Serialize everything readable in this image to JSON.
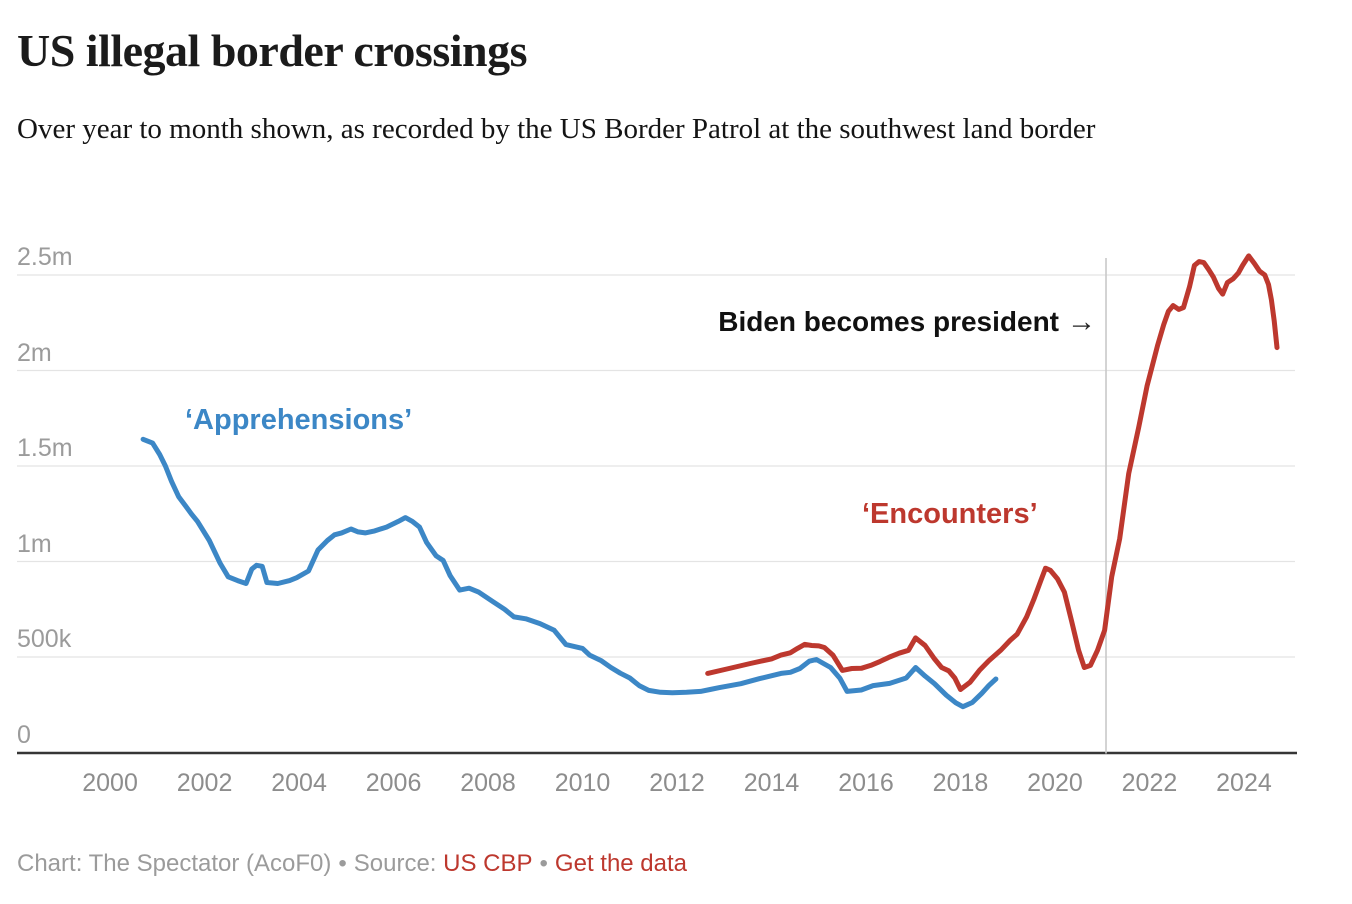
{
  "header": {
    "title": "US illegal border crossings",
    "subtitle": "Over year to month shown, as recorded by the US Border Patrol at the southwest land border"
  },
  "annotations": {
    "biden_label": "Biden becomes president",
    "biden_arrow": "→",
    "apprehensions_label": "‘Apprehensions’",
    "encounters_label": "‘Encounters’"
  },
  "footer": {
    "credit": "Chart: The Spectator (AcoF0)",
    "separator": "•",
    "source_prefix": "Source:",
    "source_link": "US CBP",
    "data_link": "Get the data"
  },
  "colors": {
    "apprehensions_blue": "#3c87c6",
    "encounters_red": "#bd382e",
    "grid": "#e4e4e4",
    "axis": "#363636",
    "vline": "#c9c9c9",
    "tick_text": "#9b9b9b",
    "link_red": "#bd382e"
  },
  "chart_data": {
    "type": "line",
    "title": "US illegal border crossings",
    "subtitle": "Over year to month shown, as recorded by the US Border Patrol at the southwest land border",
    "unit": "people per rolling 12-month period, millions",
    "xlabel": "",
    "ylabel": "",
    "grid": true,
    "legend_position": "inline-labels",
    "x_range": [
      1998.03,
      2025.08
    ],
    "ylim": [
      0,
      2.5
    ],
    "x_ticks": [
      2000,
      2002,
      2004,
      2006,
      2008,
      2010,
      2012,
      2014,
      2016,
      2018,
      2020,
      2022,
      2024
    ],
    "y_ticks": [
      {
        "value": 0.0,
        "label": "0"
      },
      {
        "value": 0.5,
        "label": "500k"
      },
      {
        "value": 1.0,
        "label": "1m"
      },
      {
        "value": 1.5,
        "label": "1.5m"
      },
      {
        "value": 2.0,
        "label": "2m"
      },
      {
        "value": 2.5,
        "label": "2.5m"
      }
    ],
    "vline": {
      "x": 2021.08,
      "label": "Biden becomes president"
    },
    "series": [
      {
        "name": "Apprehensions",
        "color": "#3c87c6",
        "points": [
          [
            2000.7,
            1.64
          ],
          [
            2000.9,
            1.62
          ],
          [
            2001.05,
            1.56
          ],
          [
            2001.17,
            1.5
          ],
          [
            2001.3,
            1.42
          ],
          [
            2001.45,
            1.34
          ],
          [
            2001.6,
            1.29
          ],
          [
            2001.72,
            1.25
          ],
          [
            2001.85,
            1.21
          ],
          [
            2002.1,
            1.11
          ],
          [
            2002.33,
            0.99
          ],
          [
            2002.5,
            0.92
          ],
          [
            2002.7,
            0.9
          ],
          [
            2002.88,
            0.885
          ],
          [
            2003.0,
            0.96
          ],
          [
            2003.1,
            0.98
          ],
          [
            2003.22,
            0.975
          ],
          [
            2003.32,
            0.89
          ],
          [
            2003.55,
            0.885
          ],
          [
            2003.8,
            0.9
          ],
          [
            2003.95,
            0.915
          ],
          [
            2004.2,
            0.95
          ],
          [
            2004.4,
            1.06
          ],
          [
            2004.6,
            1.11
          ],
          [
            2004.75,
            1.14
          ],
          [
            2004.9,
            1.15
          ],
          [
            2005.1,
            1.17
          ],
          [
            2005.25,
            1.155
          ],
          [
            2005.4,
            1.15
          ],
          [
            2005.6,
            1.16
          ],
          [
            2005.85,
            1.18
          ],
          [
            2006.1,
            1.21
          ],
          [
            2006.25,
            1.23
          ],
          [
            2006.4,
            1.21
          ],
          [
            2006.55,
            1.18
          ],
          [
            2006.7,
            1.1
          ],
          [
            2006.9,
            1.03
          ],
          [
            2007.05,
            1.005
          ],
          [
            2007.2,
            0.925
          ],
          [
            2007.4,
            0.85
          ],
          [
            2007.6,
            0.86
          ],
          [
            2007.8,
            0.84
          ],
          [
            2008.1,
            0.79
          ],
          [
            2008.35,
            0.75
          ],
          [
            2008.55,
            0.71
          ],
          [
            2008.8,
            0.7
          ],
          [
            2009.1,
            0.675
          ],
          [
            2009.4,
            0.64
          ],
          [
            2009.65,
            0.565
          ],
          [
            2010.0,
            0.545
          ],
          [
            2010.15,
            0.51
          ],
          [
            2010.4,
            0.48
          ],
          [
            2010.6,
            0.445
          ],
          [
            2010.8,
            0.415
          ],
          [
            2011.0,
            0.39
          ],
          [
            2011.2,
            0.35
          ],
          [
            2011.4,
            0.325
          ],
          [
            2011.65,
            0.315
          ],
          [
            2011.9,
            0.313
          ],
          [
            2012.2,
            0.315
          ],
          [
            2012.5,
            0.32
          ],
          [
            2012.7,
            0.33
          ],
          [
            2012.9,
            0.34
          ],
          [
            2013.35,
            0.36
          ],
          [
            2013.75,
            0.387
          ],
          [
            2014.2,
            0.414
          ],
          [
            2014.4,
            0.42
          ],
          [
            2014.6,
            0.44
          ],
          [
            2014.8,
            0.478
          ],
          [
            2014.95,
            0.487
          ],
          [
            2015.1,
            0.466
          ],
          [
            2015.25,
            0.445
          ],
          [
            2015.45,
            0.388
          ],
          [
            2015.6,
            0.32
          ],
          [
            2015.9,
            0.327
          ],
          [
            2016.15,
            0.35
          ],
          [
            2016.5,
            0.362
          ],
          [
            2016.85,
            0.39
          ],
          [
            2017.05,
            0.445
          ],
          [
            2017.25,
            0.4
          ],
          [
            2017.45,
            0.36
          ],
          [
            2017.7,
            0.3
          ],
          [
            2017.9,
            0.26
          ],
          [
            2018.05,
            0.24
          ],
          [
            2018.25,
            0.262
          ],
          [
            2018.45,
            0.31
          ],
          [
            2018.6,
            0.35
          ],
          [
            2018.75,
            0.385
          ]
        ]
      },
      {
        "name": "Encounters",
        "color": "#bd382e",
        "points": [
          [
            2012.65,
            0.414
          ],
          [
            2013.1,
            0.44
          ],
          [
            2013.55,
            0.466
          ],
          [
            2014.0,
            0.49
          ],
          [
            2014.2,
            0.51
          ],
          [
            2014.4,
            0.522
          ],
          [
            2014.55,
            0.545
          ],
          [
            2014.7,
            0.566
          ],
          [
            2014.85,
            0.56
          ],
          [
            2015.0,
            0.558
          ],
          [
            2015.12,
            0.55
          ],
          [
            2015.3,
            0.51
          ],
          [
            2015.5,
            0.43
          ],
          [
            2015.7,
            0.44
          ],
          [
            2015.9,
            0.441
          ],
          [
            2016.1,
            0.456
          ],
          [
            2016.3,
            0.477
          ],
          [
            2016.5,
            0.5
          ],
          [
            2016.7,
            0.52
          ],
          [
            2016.9,
            0.535
          ],
          [
            2017.05,
            0.6
          ],
          [
            2017.25,
            0.56
          ],
          [
            2017.45,
            0.49
          ],
          [
            2017.6,
            0.445
          ],
          [
            2017.75,
            0.428
          ],
          [
            2017.88,
            0.39
          ],
          [
            2018.0,
            0.33
          ],
          [
            2018.2,
            0.367
          ],
          [
            2018.4,
            0.43
          ],
          [
            2018.6,
            0.48
          ],
          [
            2018.85,
            0.535
          ],
          [
            2019.05,
            0.587
          ],
          [
            2019.2,
            0.62
          ],
          [
            2019.4,
            0.71
          ],
          [
            2019.55,
            0.8
          ],
          [
            2019.7,
            0.9
          ],
          [
            2019.8,
            0.965
          ],
          [
            2019.9,
            0.954
          ],
          [
            2020.05,
            0.91
          ],
          [
            2020.2,
            0.84
          ],
          [
            2020.35,
            0.69
          ],
          [
            2020.5,
            0.535
          ],
          [
            2020.62,
            0.445
          ],
          [
            2020.75,
            0.456
          ],
          [
            2020.9,
            0.535
          ],
          [
            2021.05,
            0.64
          ],
          [
            2021.2,
            0.92
          ],
          [
            2021.37,
            1.12
          ],
          [
            2021.56,
            1.46
          ],
          [
            2021.77,
            1.7
          ],
          [
            2021.95,
            1.92
          ],
          [
            2022.17,
            2.13
          ],
          [
            2022.3,
            2.24
          ],
          [
            2022.4,
            2.31
          ],
          [
            2022.5,
            2.34
          ],
          [
            2022.62,
            2.32
          ],
          [
            2022.72,
            2.33
          ],
          [
            2022.85,
            2.44
          ],
          [
            2022.95,
            2.55
          ],
          [
            2023.05,
            2.57
          ],
          [
            2023.15,
            2.565
          ],
          [
            2023.25,
            2.53
          ],
          [
            2023.35,
            2.49
          ],
          [
            2023.46,
            2.43
          ],
          [
            2023.55,
            2.4
          ],
          [
            2023.65,
            2.46
          ],
          [
            2023.77,
            2.48
          ],
          [
            2023.88,
            2.51
          ],
          [
            2023.97,
            2.55
          ],
          [
            2024.1,
            2.6
          ],
          [
            2024.22,
            2.56
          ],
          [
            2024.33,
            2.52
          ],
          [
            2024.44,
            2.5
          ],
          [
            2024.52,
            2.45
          ],
          [
            2024.58,
            2.37
          ],
          [
            2024.64,
            2.26
          ],
          [
            2024.7,
            2.12
          ]
        ]
      }
    ]
  }
}
